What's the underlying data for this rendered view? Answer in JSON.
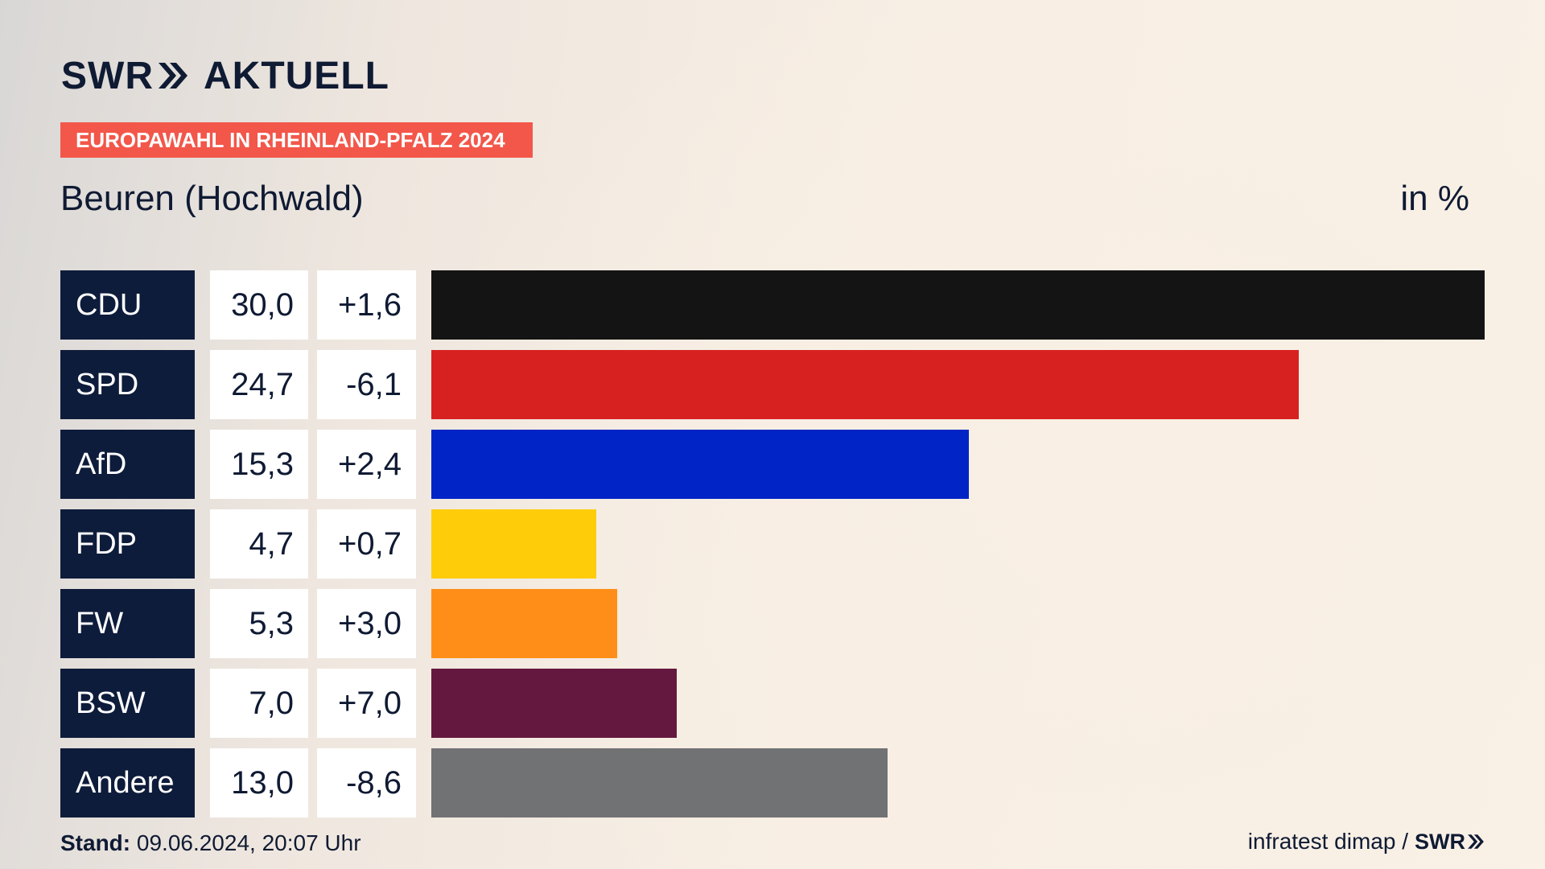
{
  "header": {
    "brand": "SWR",
    "product": "AKTUELL",
    "badge": "EUROPAWAHL IN RHEINLAND-PFALZ 2024",
    "region": "Beuren (Hochwald)",
    "unit": "in %"
  },
  "footer": {
    "stand_label": "Stand:",
    "stand_value": "09.06.2024, 20:07 Uhr",
    "source": "infratest dimap /",
    "source_brand": "SWR"
  },
  "colors": {
    "badge": "#f2574a",
    "party_cell": "#0e1c3b"
  },
  "chart_data": {
    "type": "bar",
    "orientation": "horizontal",
    "unit": "in %",
    "categories": [
      "CDU",
      "SPD",
      "AfD",
      "FDP",
      "FW",
      "BSW",
      "Andere"
    ],
    "values": [
      30.0,
      24.7,
      15.3,
      4.7,
      5.3,
      7.0,
      13.0
    ],
    "value_labels": [
      "30,0",
      "24,7",
      "15,3",
      "4,7",
      "5,3",
      "7,0",
      "13,0"
    ],
    "diff_labels": [
      "+1,6",
      "-6,1",
      "+2,4",
      "+0,7",
      "+3,0",
      "+7,0",
      "-8,6"
    ],
    "bar_colors": [
      "#141414",
      "#d72120",
      "#0024c6",
      "#ffcc0a",
      "#ff8e18",
      "#64183f",
      "#717273"
    ],
    "xlim": [
      0,
      30.0
    ]
  }
}
